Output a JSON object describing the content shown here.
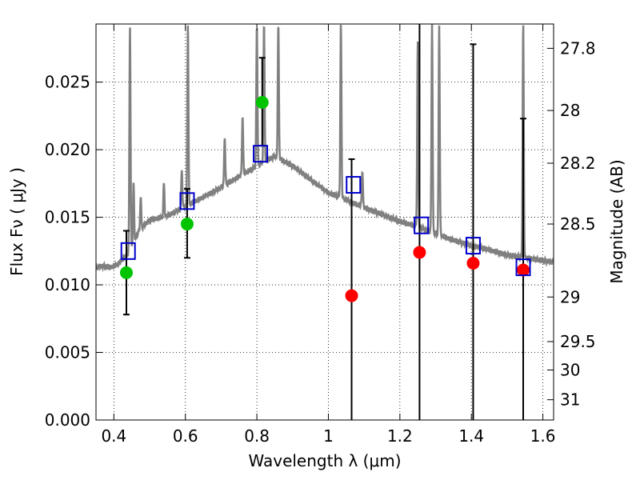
{
  "chart_data": {
    "type": "scatter",
    "xlabel": "Wavelength  λ (μm)",
    "ylabel": "Flux  Fν  ( μJy )",
    "y2label": "Magnitude (AB)",
    "xlim": [
      0.35,
      1.63
    ],
    "ylim": [
      0.0,
      0.0293
    ],
    "grid": true,
    "x_ticks": [
      0.4,
      0.6,
      0.8,
      1.0,
      1.2,
      1.4,
      1.6
    ],
    "x_tick_labels": [
      "0.4",
      "0.6",
      "0.8",
      "1",
      "1.2",
      "1.4",
      "1.6"
    ],
    "y_ticks": [
      0.0,
      0.005,
      0.01,
      0.015,
      0.02,
      0.025
    ],
    "y_tick_labels": [
      "0.000",
      "0.005",
      "0.010",
      "0.015",
      "0.020",
      "0.025"
    ],
    "y2_ticks": [
      {
        "label": "27.8",
        "flux": 0.0275
      },
      {
        "label": "28",
        "flux": 0.0229
      },
      {
        "label": "28.2",
        "flux": 0.019
      },
      {
        "label": "28.5",
        "flux": 0.0145
      },
      {
        "label": "29",
        "flux": 0.0091
      },
      {
        "label": "29.5",
        "flux": 0.0058
      },
      {
        "label": "30",
        "flux": 0.0037
      },
      {
        "label": "31",
        "flux": 0.0015
      }
    ],
    "series": [
      {
        "marker": "circle",
        "color": "#00c400",
        "x": [
          0.435,
          0.605,
          0.815
        ],
        "y": [
          0.0109,
          0.0145,
          0.0235
        ]
      },
      {
        "marker": "circle",
        "color": "#ff0000",
        "x": [
          1.065,
          1.255,
          1.405,
          1.545
        ],
        "y": [
          0.0092,
          0.0124,
          0.0116,
          0.0111
        ]
      },
      {
        "marker": "open-square",
        "color": "#0000cc",
        "x": [
          0.44,
          0.605,
          0.81,
          1.07,
          1.26,
          1.405,
          1.545
        ],
        "y": [
          0.0125,
          0.0162,
          0.0197,
          0.0174,
          0.0144,
          0.0129,
          0.0113
        ]
      }
    ],
    "error_bars": [
      {
        "x": 0.435,
        "low": 0.0078,
        "high": 0.014
      },
      {
        "x": 0.605,
        "low": 0.012,
        "high": 0.0171
      },
      {
        "x": 0.815,
        "low": 0.0203,
        "high": 0.0268
      },
      {
        "x": 1.065,
        "low": 0.0,
        "high": 0.0193
      },
      {
        "x": 1.255,
        "low": 0.0,
        "high": 0.0293
      },
      {
        "x": 1.405,
        "low": 0.0,
        "high": 0.0278
      },
      {
        "x": 1.545,
        "low": 0.0,
        "high": 0.0223
      }
    ],
    "spectrum": {
      "color": "#808080",
      "continuum": [
        [
          0.35,
          0.0113
        ],
        [
          0.37,
          0.0114
        ],
        [
          0.39,
          0.0113
        ],
        [
          0.41,
          0.0115
        ],
        [
          0.43,
          0.012
        ],
        [
          0.44,
          0.0123
        ],
        [
          0.45,
          0.0128
        ],
        [
          0.47,
          0.014
        ],
        [
          0.5,
          0.0148
        ],
        [
          0.55,
          0.0151
        ],
        [
          0.6,
          0.0158
        ],
        [
          0.65,
          0.0165
        ],
        [
          0.7,
          0.0172
        ],
        [
          0.75,
          0.018
        ],
        [
          0.8,
          0.0188
        ],
        [
          0.85,
          0.0195
        ],
        [
          0.9,
          0.0188
        ],
        [
          0.95,
          0.0178
        ],
        [
          1.0,
          0.0168
        ],
        [
          1.05,
          0.0163
        ],
        [
          1.1,
          0.0157
        ],
        [
          1.15,
          0.0152
        ],
        [
          1.2,
          0.0147
        ],
        [
          1.25,
          0.0143
        ],
        [
          1.3,
          0.0138
        ],
        [
          1.35,
          0.0133
        ],
        [
          1.4,
          0.0129
        ],
        [
          1.45,
          0.0126
        ],
        [
          1.5,
          0.0122
        ],
        [
          1.55,
          0.012
        ],
        [
          1.6,
          0.0118
        ],
        [
          1.63,
          0.0117
        ]
      ],
      "lines": [
        {
          "x": 0.445,
          "peak": 0.0293
        },
        {
          "x": 0.455,
          "peak": 0.0175
        },
        {
          "x": 0.475,
          "peak": 0.0165
        },
        {
          "x": 0.54,
          "peak": 0.0175
        },
        {
          "x": 0.59,
          "peak": 0.0185
        },
        {
          "x": 0.607,
          "peak": 0.0293
        },
        {
          "x": 0.71,
          "peak": 0.021
        },
        {
          "x": 0.76,
          "peak": 0.0225
        },
        {
          "x": 0.8,
          "peak": 0.0293
        },
        {
          "x": 0.82,
          "peak": 0.0293
        },
        {
          "x": 0.86,
          "peak": 0.0293
        },
        {
          "x": 1.035,
          "peak": 0.0293
        },
        {
          "x": 1.095,
          "peak": 0.0185
        },
        {
          "x": 1.25,
          "peak": 0.028
        },
        {
          "x": 1.29,
          "peak": 0.0293
        },
        {
          "x": 1.31,
          "peak": 0.0293
        },
        {
          "x": 1.545,
          "peak": 0.0293
        }
      ]
    }
  }
}
